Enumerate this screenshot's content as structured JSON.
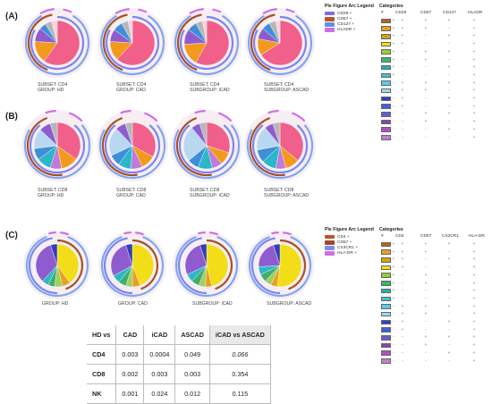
{
  "panels": [
    {
      "letter": "(A)",
      "pies": [
        {
          "caption": [
            "SUBSET: CD4",
            "GROUP: HD"
          ]
        },
        {
          "caption": [
            "SUBSET: CD4",
            "GROUP: CAD"
          ]
        },
        {
          "caption": [
            "SUBSET: CD4",
            "SUBGROUP: iCAD"
          ]
        },
        {
          "caption": [
            "SUBSET: CD4",
            "SUBGROUP: ASCAD"
          ]
        }
      ],
      "legend_title": "Pie Figure Arc Legend",
      "legend": [
        {
          "label": "CD28 +",
          "color": "#7b6ee6"
        },
        {
          "label": "CD57 +",
          "color": "#b8552a"
        },
        {
          "label": "CD127 +",
          "color": "#5f8fe8"
        },
        {
          "label": "HLADR +",
          "color": "#d06ee6"
        }
      ],
      "categories_title": "Categories",
      "columns": [
        "#",
        "CD28",
        "CD57",
        "CD127",
        "HLADR"
      ]
    },
    {
      "letter": "(B)",
      "pies": [
        {
          "caption": [
            "SUBSET: CD8",
            "GROUP: HD"
          ]
        },
        {
          "caption": [
            "SUBSET: CD8",
            "GROUP: CAD"
          ]
        },
        {
          "caption": [
            "SUBSET: CD8",
            "SUBGROUP: iCAD"
          ]
        },
        {
          "caption": [
            "SUBSET: CD8",
            "SUBGROUP: ASCAD"
          ]
        }
      ]
    },
    {
      "letter": "(C)",
      "pies": [
        {
          "caption": [
            "GROUP: HD"
          ]
        },
        {
          "caption": [
            "GROUP: CAD"
          ]
        },
        {
          "caption": [
            "SUBGROUP: iCAD"
          ]
        },
        {
          "caption": [
            "SUBGROUP: ASCAD"
          ]
        }
      ],
      "legend_title": "Pie Figure Arc Legend",
      "legend": [
        {
          "label": "CD4 +",
          "color": "#b8552a"
        },
        {
          "label": "CD57 +",
          "color": "#a04a2a"
        },
        {
          "label": "CX3CR1 +",
          "color": "#7a8ef0"
        },
        {
          "label": "HLA-DR +",
          "color": "#d06ee6"
        }
      ],
      "categories_title": "Categories",
      "columns": [
        "#",
        "CD4",
        "CD57",
        "CX3CR1",
        "HLA-DR"
      ]
    }
  ],
  "category_colors": [
    "#b5651d",
    "#e8a020",
    "#d4a017",
    "#f2e01a",
    "#9acd32",
    "#3cb371",
    "#20b2aa",
    "#40c0e0",
    "#5bc8f0",
    "#9fd8f5",
    "#2a3fd0",
    "#4060e0",
    "#6a5acd",
    "#8e44ad",
    "#b050c0",
    "#c080d0"
  ],
  "pvalue_table": {
    "headers": [
      "HD vs",
      "CAD",
      "iCAD",
      "ASCAD",
      "iCAD vs ASCAD"
    ],
    "rows": [
      [
        "CD4",
        "0.003",
        "0.0004",
        "0.049",
        "0.066"
      ],
      [
        "CD8",
        "0.002",
        "0.003",
        "0.003",
        "0.354"
      ],
      [
        "NK",
        "0.001",
        "0.024",
        "0.012",
        "0.115"
      ]
    ]
  }
}
